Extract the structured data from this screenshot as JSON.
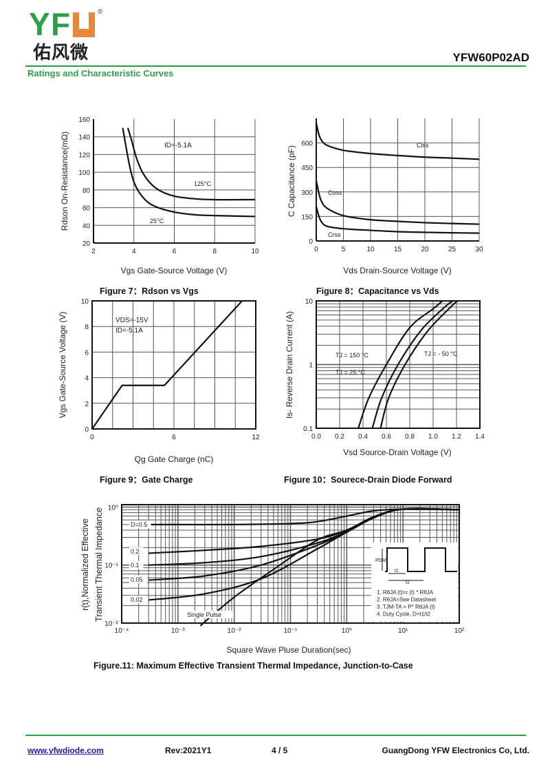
{
  "header": {
    "logo_text": "YFW",
    "logo_cn": "佑风微",
    "logo_reg": "®",
    "part_number": "YFW60P02AD",
    "section_title": "Ratings and Characteristic Curves"
  },
  "footer": {
    "website": "www.yfwdiode.com",
    "revision": "Rev:2021Y1",
    "page": "4 / 5",
    "company": "GuangDong YFW Electronics Co, Ltd."
  },
  "colors": {
    "brand_green": "#2e9e48",
    "brand_orange": "#e8873a",
    "link": "#1a1aa6"
  },
  "chart_data": [
    {
      "type": "line",
      "title": "Figure 7：Rdson  vs  Vgs",
      "xlabel": "Vgs Gate-Source Voltage (V)",
      "ylabel": "Rdson On-Resistance(mΩ)",
      "xlim": [
        2,
        10
      ],
      "ylim": [
        20,
        160
      ],
      "xscale": "linear",
      "yscale": "linear",
      "grid": true,
      "xticks": [
        {
          "v": 2,
          "label": "2"
        },
        {
          "v": 4,
          "label": "4"
        },
        {
          "v": 6,
          "label": "6"
        },
        {
          "v": 8,
          "label": "8"
        },
        {
          "v": 10,
          "label": "10"
        }
      ],
      "yticks": [
        {
          "v": 20,
          "label": "20"
        },
        {
          "v": 40,
          "label": "40"
        },
        {
          "v": 60,
          "label": "60"
        },
        {
          "v": 80,
          "label": "80"
        },
        {
          "v": 100,
          "label": "100"
        },
        {
          "v": 120,
          "label": "120"
        },
        {
          "v": 140,
          "label": "140"
        },
        {
          "v": 160,
          "label": "160"
        }
      ],
      "annotations": [
        "ID=-5.1A"
      ],
      "series": [
        {
          "name": "125°C",
          "points": [
            [
              3.7,
              150
            ],
            [
              3.9,
              135
            ],
            [
              4.1,
              118
            ],
            [
              4.4,
              101
            ],
            [
              4.8,
              88
            ],
            [
              5.3,
              79
            ],
            [
              6,
              73
            ],
            [
              7,
              70
            ],
            [
              8,
              69
            ],
            [
              10,
              69
            ]
          ]
        },
        {
          "name": "25°C",
          "points": [
            [
              3.45,
              150
            ],
            [
              3.6,
              130
            ],
            [
              3.8,
              106
            ],
            [
              4,
              89
            ],
            [
              4.3,
              76
            ],
            [
              4.7,
              66
            ],
            [
              5.2,
              60
            ],
            [
              6,
              55
            ],
            [
              7,
              52
            ],
            [
              8,
              51
            ],
            [
              10,
              50
            ]
          ]
        }
      ]
    },
    {
      "type": "line",
      "title": "Figure 8：Capacitance vs Vds",
      "xlabel": "Vds Drain-Source Voltage (V)",
      "ylabel": "C Capacitance (pF)",
      "xlim": [
        0,
        30
      ],
      "ylim": [
        0,
        750
      ],
      "xscale": "linear",
      "yscale": "linear",
      "grid": true,
      "xticks": [
        {
          "v": 0,
          "label": "0"
        },
        {
          "v": 5,
          "label": "5"
        },
        {
          "v": 10,
          "label": "10"
        },
        {
          "v": 15,
          "label": "15"
        },
        {
          "v": 20,
          "label": "20"
        },
        {
          "v": 25,
          "label": "25"
        },
        {
          "v": 30,
          "label": "30"
        }
      ],
      "yticks": [
        {
          "v": 0,
          "label": "0"
        },
        {
          "v": 150,
          "label": "150"
        },
        {
          "v": 300,
          "label": "300"
        },
        {
          "v": 450,
          "label": "450"
        },
        {
          "v": 600,
          "label": "600"
        }
      ],
      "annotations": [],
      "series": [
        {
          "name": "Ciss",
          "points": [
            [
              0,
              720
            ],
            [
              0.5,
              650
            ],
            [
              1,
              615
            ],
            [
              2,
              585
            ],
            [
              5,
              555
            ],
            [
              10,
              535
            ],
            [
              15,
              523
            ],
            [
              20,
              513
            ],
            [
              25,
              507
            ],
            [
              30,
              500
            ]
          ]
        },
        {
          "name": "Coss",
          "points": [
            [
              0,
              370
            ],
            [
              0.5,
              290
            ],
            [
              1,
              240
            ],
            [
              2,
              200
            ],
            [
              5,
              155
            ],
            [
              10,
              130
            ],
            [
              15,
              120
            ],
            [
              20,
              112
            ],
            [
              25,
              107
            ],
            [
              30,
              103
            ]
          ]
        },
        {
          "name": "Crss",
          "points": [
            [
              0,
              210
            ],
            [
              0.5,
              150
            ],
            [
              1,
              115
            ],
            [
              2,
              90
            ],
            [
              5,
              75
            ],
            [
              10,
              65
            ],
            [
              15,
              57
            ],
            [
              20,
              53
            ],
            [
              25,
              50
            ],
            [
              30,
              48
            ]
          ]
        }
      ]
    },
    {
      "type": "line",
      "title": "Figure 9：Gate Charge",
      "xlabel": "Qg Gate Charge (nC)",
      "ylabel": "Vgs Gate-Source Voltage (V)",
      "xlim": [
        0,
        12
      ],
      "ylim": [
        0,
        10
      ],
      "xscale": "linear",
      "yscale": "linear",
      "grid": true,
      "xticks": [
        {
          "v": 0,
          "label": "0"
        },
        {
          "v": 6,
          "label": "6"
        },
        {
          "v": 12,
          "label": "12"
        }
      ],
      "yticks": [
        {
          "v": 0,
          "label": "0"
        },
        {
          "v": 2,
          "label": "2"
        },
        {
          "v": 4,
          "label": "4"
        },
        {
          "v": 6,
          "label": "6"
        },
        {
          "v": 8,
          "label": "8"
        },
        {
          "v": 10,
          "label": "10"
        }
      ],
      "annotations": [
        "VDS=-15V",
        "ID=-5.1A"
      ],
      "series": [
        {
          "points": [
            [
              0,
              0
            ],
            [
              2.2,
              3.4
            ],
            [
              5.3,
              3.4
            ],
            [
              11,
              10
            ]
          ]
        }
      ]
    },
    {
      "type": "line",
      "title": "Figure 10：Sourece-Drain Diode Forward",
      "xlabel": "Vsd Source-Drain Voltage (V)",
      "ylabel": "Is- Reverse Drain Current (A)",
      "xlim": [
        0,
        1.4
      ],
      "ylim": [
        0.1,
        10
      ],
      "xscale": "linear",
      "yscale": "log",
      "grid": true,
      "xticks": [
        {
          "v": 0,
          "label": "0.0"
        },
        {
          "v": 0.2,
          "label": "0.2"
        },
        {
          "v": 0.4,
          "label": "0.4"
        },
        {
          "v": 0.6,
          "label": "0.6"
        },
        {
          "v": 0.8,
          "label": "0.8"
        },
        {
          "v": 1.0,
          "label": "1.0"
        },
        {
          "v": 1.2,
          "label": "1.2"
        },
        {
          "v": 1.4,
          "label": "1.4"
        }
      ],
      "yticks": [
        {
          "v": 0.1,
          "label": "0.1"
        },
        {
          "v": 1,
          "label": "1"
        },
        {
          "v": 10,
          "label": "10"
        }
      ],
      "annotations": [],
      "series": [
        {
          "name": "TJ = 150 °C",
          "points": [
            [
              0.36,
              0.1
            ],
            [
              0.45,
              0.3
            ],
            [
              0.6,
              1
            ],
            [
              0.8,
              3.8
            ],
            [
              1.0,
              7.5
            ],
            [
              1.08,
              10
            ]
          ]
        },
        {
          "name": "TJ = 25 °C",
          "points": [
            [
              0.48,
              0.1
            ],
            [
              0.56,
              0.3
            ],
            [
              0.7,
              1
            ],
            [
              0.9,
              3.5
            ],
            [
              1.1,
              8
            ],
            [
              1.17,
              10
            ]
          ]
        },
        {
          "name": "TJ = - 50 °C",
          "points": [
            [
              0.55,
              0.1
            ],
            [
              0.62,
              0.3
            ],
            [
              0.76,
              1
            ],
            [
              0.95,
              3.3
            ],
            [
              1.15,
              8
            ],
            [
              1.21,
              10
            ]
          ]
        }
      ]
    },
    {
      "type": "line",
      "title": "Figure.11: Maximum Effective  Transient Thermal Impedance, Junction-to-Case",
      "xlabel": "Square Wave Pluse Duration(sec)",
      "ylabel": [
        "r(t),Normalized Effective",
        "Transient Thermal Impedance"
      ],
      "xlim": [
        0.0001,
        100
      ],
      "ylim": [
        0.01,
        1.1
      ],
      "xscale": "log",
      "yscale": "log",
      "grid": true,
      "xticks": [
        {
          "v": 0.0001,
          "label": "10⁻⁴"
        },
        {
          "v": 0.001,
          "label": "10⁻³"
        },
        {
          "v": 0.01,
          "label": "10⁻²"
        },
        {
          "v": 0.1,
          "label": "10⁻¹"
        },
        {
          "v": 1,
          "label": "10⁰"
        },
        {
          "v": 10,
          "label": "10¹"
        },
        {
          "v": 100,
          "label": "10²"
        }
      ],
      "yticks": [
        {
          "v": 0.01,
          "label": "10⁻²"
        },
        {
          "v": 0.1,
          "label": "10⁻¹"
        },
        {
          "v": 1,
          "label": "10⁰"
        }
      ],
      "annotations": [
        "PDM",
        "t1",
        "t2"
      ],
      "notes": [
        "1. RθJA (t)=r (t) * RθJA",
        "2. RθJA=See Datasheet",
        "3. TJM-TA = P* RθJA (t)",
        "4. Duty Cycle, D=t1/t2"
      ],
      "series": [
        {
          "name": "D=0.5",
          "points": [
            [
              0.0003,
              0.5
            ],
            [
              0.01,
              0.5
            ],
            [
              0.1,
              0.52
            ],
            [
              0.3,
              0.56
            ],
            [
              1,
              0.7
            ],
            [
              3,
              0.86
            ],
            [
              10,
              0.92
            ],
            [
              100,
              0.9
            ]
          ]
        },
        {
          "name": "0.2",
          "points": [
            [
              0.0003,
              0.16
            ],
            [
              0.003,
              0.18
            ],
            [
              0.03,
              0.21
            ],
            [
              0.3,
              0.28
            ],
            [
              1,
              0.4
            ],
            [
              3,
              0.68
            ],
            [
              10,
              0.92
            ],
            [
              100,
              0.9
            ]
          ]
        },
        {
          "name": "0.1",
          "points": [
            [
              0.0003,
              0.1
            ],
            [
              0.003,
              0.11
            ],
            [
              0.03,
              0.14
            ],
            [
              0.3,
              0.24
            ],
            [
              1,
              0.38
            ],
            [
              3,
              0.66
            ],
            [
              10,
              0.92
            ],
            [
              100,
              0.9
            ]
          ]
        },
        {
          "name": "0.05",
          "points": [
            [
              0.0003,
              0.055
            ],
            [
              0.003,
              0.065
            ],
            [
              0.03,
              0.1
            ],
            [
              0.3,
              0.22
            ],
            [
              1,
              0.37
            ],
            [
              3,
              0.65
            ],
            [
              10,
              0.92
            ],
            [
              100,
              0.9
            ]
          ]
        },
        {
          "name": "0.02",
          "points": [
            [
              0.0003,
              0.025
            ],
            [
              0.003,
              0.032
            ],
            [
              0.03,
              0.058
            ],
            [
              0.3,
              0.19
            ],
            [
              1,
              0.37
            ],
            [
              3,
              0.65
            ],
            [
              10,
              0.92
            ],
            [
              100,
              0.9
            ]
          ]
        },
        {
          "name": "Single Pulse",
          "points": [
            [
              0.0025,
              0.009
            ],
            [
              0.01,
              0.028
            ],
            [
              0.06,
              0.095
            ],
            [
              0.3,
              0.27
            ],
            [
              1,
              0.4
            ],
            [
              3,
              0.66
            ],
            [
              10,
              0.92
            ],
            [
              100,
              0.9
            ]
          ]
        }
      ]
    }
  ]
}
